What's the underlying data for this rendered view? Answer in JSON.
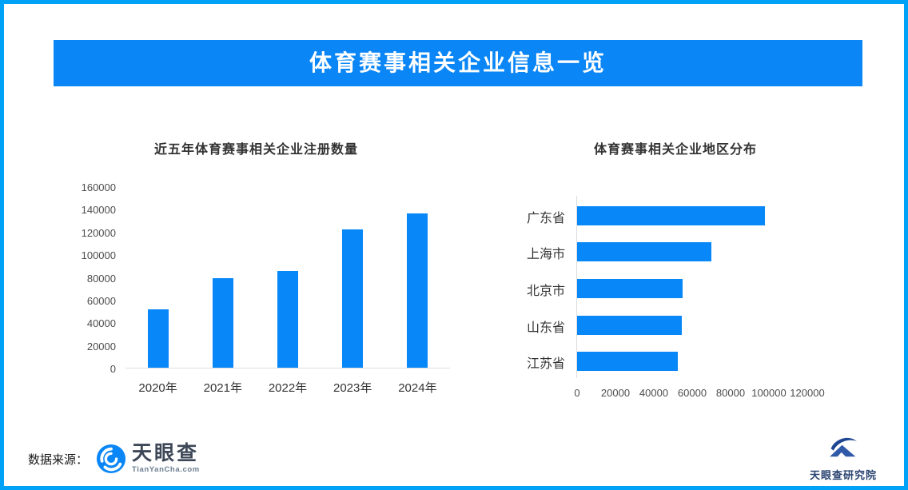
{
  "header": {
    "title": "体育赛事相关企业信息一览"
  },
  "footer": {
    "source_label": "数据来源：",
    "tianyancha_name": "天眼查",
    "tianyancha_domain": "TianYanCha.com",
    "research_name": "天眼查研究院"
  },
  "colors": {
    "frame": "#00A2F8",
    "banner": "#0A86F6",
    "bar": "#0887F8",
    "chart-title": "#333333",
    "axis-label": "#4D4D4D",
    "axis-line": "#DDDDDD",
    "source-text": "#1A1A1A",
    "tyc-wordmark": "#3D4757",
    "tyc-domain": "#6C7E90",
    "research-navy": "#2A4370"
  },
  "chart_data": [
    {
      "id": "registrations",
      "type": "bar",
      "orientation": "vertical",
      "title": "近五年体育赛事相关企业注册数量",
      "categories": [
        "2020年",
        "2021年",
        "2022年",
        "2023年",
        "2024年"
      ],
      "values": [
        52000,
        80000,
        86000,
        123000,
        137000
      ],
      "xlabel": "",
      "ylabel": "",
      "ylim": [
        0,
        160000
      ],
      "ytick_labels": [
        "0",
        "20000",
        "40000",
        "60000",
        "80000",
        "100000",
        "120000",
        "140000",
        "160000"
      ],
      "bar_color": "#0887F8",
      "grid": false,
      "legend": "none"
    },
    {
      "id": "regions",
      "type": "bar",
      "orientation": "horizontal",
      "title": "体育赛事相关企业地区分布",
      "categories": [
        "广东省",
        "上海市",
        "北京市",
        "山东省",
        "江苏省"
      ],
      "values": [
        98000,
        70000,
        55000,
        54500,
        52500
      ],
      "xlabel": "",
      "ylabel": "",
      "xlim": [
        0,
        120000
      ],
      "xtick_labels": [
        "0",
        "20000",
        "40000",
        "60000",
        "80000",
        "100000",
        "120000"
      ],
      "bar_color": "#0887F8",
      "grid": false,
      "legend": "none"
    }
  ]
}
